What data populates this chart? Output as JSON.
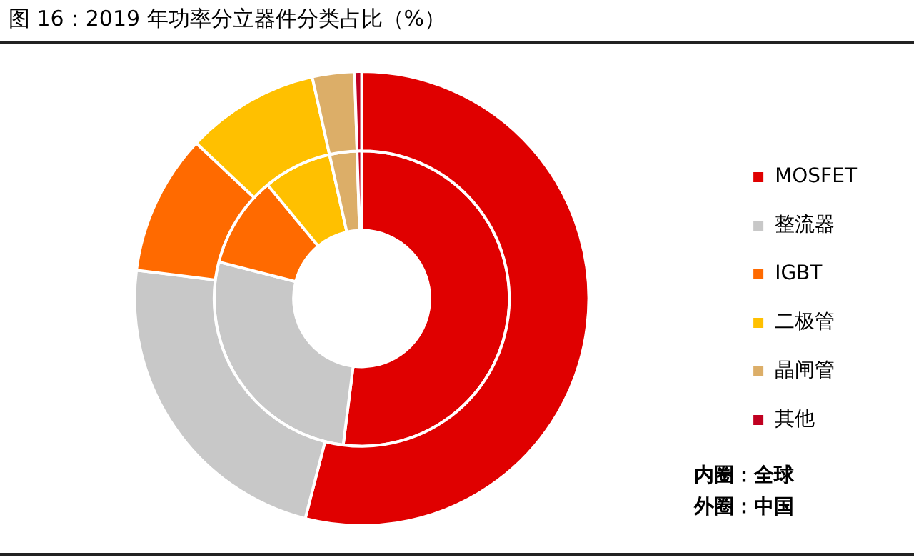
{
  "chart_data": {
    "type": "donut",
    "title": "图 16：2019 年功率分立器件分类占比（%）",
    "categories": [
      "MOSFET",
      "整流器",
      "IGBT",
      "二极管",
      "晶闸管",
      "其他"
    ],
    "colors": [
      "#e00000",
      "#c8c8c8",
      "#ff6a00",
      "#ffc000",
      "#dcae68",
      "#c00020"
    ],
    "series": [
      {
        "values": [
          54,
          23,
          10,
          9.5,
          3,
          0.5
        ]
      },
      {
        "values": [
          52,
          27,
          10,
          7.5,
          3,
          0.5
        ]
      }
    ],
    "legend": "right",
    "annotations": [
      "内圈：全球",
      "外圈：中国"
    ]
  }
}
